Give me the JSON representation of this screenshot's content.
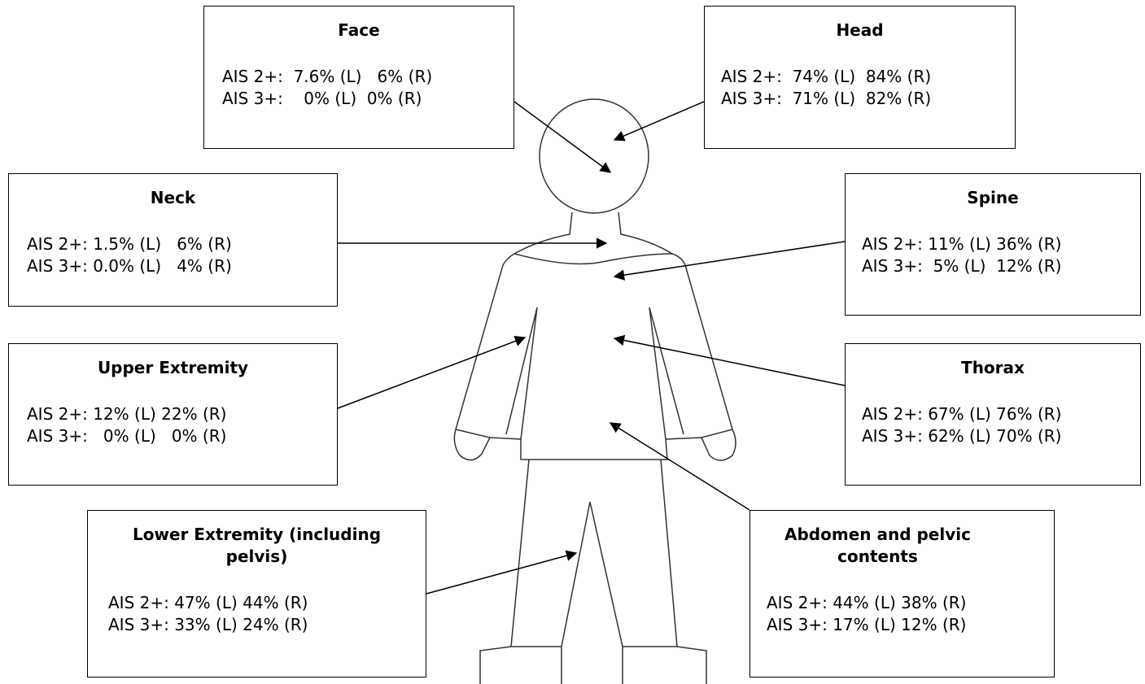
{
  "boxes": [
    {
      "title": "Face",
      "lines": [
        "AIS 2+:  7.6% (L)   6% (R)",
        "AIS 3+:    0% (L)  0% (R)"
      ]
    },
    {
      "title": "Head",
      "lines": [
        "AIS 2+:  74% (L)  84% (R)",
        "AIS 3+:  71% (L)  82% (R)"
      ]
    },
    {
      "title": "Neck",
      "lines": [
        "AIS 2+: 1.5% (L)   6% (R)",
        "AIS 3+: 0.0% (L)   4% (R)"
      ]
    },
    {
      "title": "Spine",
      "lines": [
        "AIS 2+: 11% (L) 36% (R)",
        "AIS 3+:  5% (L)  12% (R)"
      ]
    },
    {
      "title": "Upper Extremity",
      "lines": [
        "AIS 2+: 12% (L) 22% (R)",
        "AIS 3+:   0% (L)   0% (R)"
      ]
    },
    {
      "title": "Thorax",
      "lines": [
        "AIS 2+: 67% (L) 76% (R)",
        "AIS 3+: 62% (L) 70% (R)"
      ]
    },
    {
      "title": "Lower Extremity (including pelvis)",
      "lines": [
        "AIS 2+: 47% (L) 44% (R)",
        "AIS 3+: 33% (L) 24% (R)"
      ]
    },
    {
      "title": "Abdomen and pelvic contents",
      "lines": [
        "AIS 2+: 44% (L) 38% (R)",
        "AIS 3+: 17% (L) 12% (R)"
      ]
    }
  ]
}
